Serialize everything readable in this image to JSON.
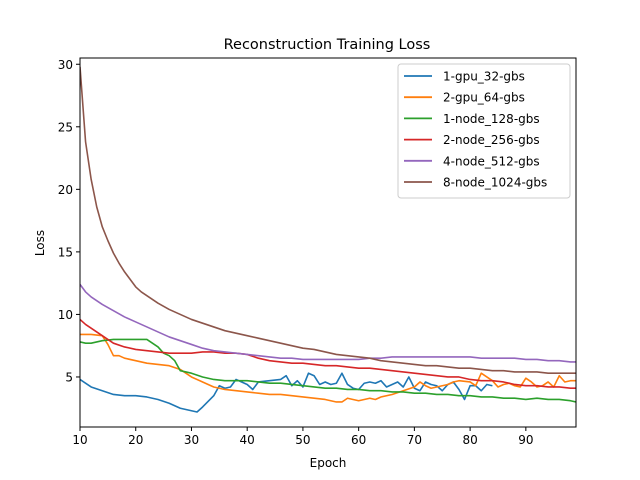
{
  "chart_data": {
    "type": "line",
    "title": "Reconstruction Training Loss",
    "xlabel": "Epoch",
    "ylabel": "Loss",
    "xlim": [
      10,
      99
    ],
    "ylim": [
      1,
      30.5
    ],
    "xticks": [
      10,
      20,
      30,
      40,
      50,
      60,
      70,
      80,
      90
    ],
    "yticks": [
      5,
      10,
      15,
      20,
      25,
      30
    ],
    "grid": false,
    "legend_position": "top-right",
    "series": [
      {
        "name": "1-gpu_32-gbs",
        "color": "#1f77b4",
        "x": [
          10,
          12,
          14,
          16,
          18,
          20,
          22,
          24,
          26,
          27,
          28,
          30,
          31,
          32,
          34,
          35,
          36,
          37,
          38,
          40,
          41,
          42,
          44,
          46,
          47,
          48,
          49,
          50,
          51,
          52,
          53,
          54,
          55,
          56,
          57,
          58,
          59,
          60,
          61,
          62,
          63,
          64,
          65,
          66,
          67,
          68,
          69,
          70,
          71,
          72,
          73,
          74,
          75,
          76,
          77,
          78,
          79,
          80,
          81,
          82,
          83,
          84
        ],
        "y": [
          4.8,
          4.2,
          3.9,
          3.6,
          3.5,
          3.5,
          3.4,
          3.2,
          2.9,
          2.7,
          2.5,
          2.3,
          2.2,
          2.6,
          3.5,
          4.3,
          4.1,
          4.2,
          4.8,
          4.4,
          4.0,
          4.6,
          4.7,
          4.8,
          5.1,
          4.3,
          4.7,
          4.2,
          5.3,
          5.1,
          4.4,
          4.6,
          4.4,
          4.5,
          5.3,
          4.4,
          4.1,
          4.0,
          4.5,
          4.6,
          4.5,
          4.7,
          4.2,
          4.4,
          4.6,
          4.2,
          5.0,
          4.1,
          3.9,
          4.6,
          4.4,
          4.3,
          3.9,
          4.4,
          4.6,
          4.0,
          3.2,
          4.3,
          4.3,
          3.9,
          4.4,
          4.3
        ]
      },
      {
        "name": "2-gpu_64-gbs",
        "color": "#ff7f0e",
        "x": [
          10,
          12,
          14,
          15,
          16,
          17,
          18,
          20,
          22,
          24,
          26,
          28,
          30,
          32,
          34,
          36,
          38,
          40,
          42,
          44,
          46,
          48,
          50,
          52,
          54,
          56,
          57,
          58,
          60,
          62,
          63,
          64,
          66,
          68,
          70,
          71,
          72,
          73,
          74,
          76,
          77,
          78,
          80,
          81,
          82,
          84,
          85,
          86,
          87,
          88,
          89,
          90,
          91,
          92,
          93,
          94,
          95,
          96,
          97,
          98,
          99
        ],
        "y": [
          8.4,
          8.4,
          8.3,
          7.6,
          6.7,
          6.7,
          6.5,
          6.3,
          6.1,
          6.0,
          5.9,
          5.6,
          5.0,
          4.6,
          4.2,
          4.0,
          3.9,
          3.8,
          3.7,
          3.6,
          3.6,
          3.5,
          3.4,
          3.3,
          3.2,
          3.0,
          3.0,
          3.3,
          3.1,
          3.3,
          3.2,
          3.4,
          3.6,
          3.9,
          4.2,
          4.6,
          4.3,
          4.1,
          4.2,
          4.4,
          4.6,
          4.7,
          4.6,
          4.3,
          5.3,
          4.7,
          4.2,
          4.4,
          4.5,
          4.3,
          4.2,
          4.9,
          4.6,
          4.2,
          4.3,
          4.6,
          4.2,
          5.1,
          4.6,
          4.7,
          4.7
        ]
      },
      {
        "name": "1-node_128-gbs",
        "color": "#2ca02c",
        "x": [
          10,
          11,
          12,
          14,
          16,
          18,
          20,
          22,
          23,
          24,
          25,
          26,
          27,
          28,
          30,
          32,
          34,
          36,
          38,
          40,
          42,
          44,
          46,
          48,
          50,
          52,
          54,
          56,
          58,
          60,
          62,
          64,
          66,
          68,
          70,
          72,
          74,
          76,
          78,
          80,
          82,
          84,
          86,
          88,
          90,
          92,
          94,
          96,
          98,
          99
        ],
        "y": [
          7.8,
          7.7,
          7.7,
          7.9,
          8.0,
          8.0,
          8.0,
          8.0,
          7.7,
          7.4,
          6.9,
          6.7,
          6.3,
          5.5,
          5.3,
          5.0,
          4.8,
          4.7,
          4.7,
          4.7,
          4.6,
          4.5,
          4.5,
          4.4,
          4.3,
          4.2,
          4.1,
          4.1,
          4.0,
          4.0,
          3.9,
          3.9,
          3.8,
          3.8,
          3.7,
          3.7,
          3.6,
          3.6,
          3.5,
          3.5,
          3.4,
          3.4,
          3.3,
          3.3,
          3.2,
          3.3,
          3.2,
          3.2,
          3.1,
          3.0
        ]
      },
      {
        "name": "2-node_256-gbs",
        "color": "#d62728",
        "x": [
          10,
          11,
          12,
          14,
          16,
          18,
          20,
          22,
          24,
          26,
          28,
          30,
          32,
          34,
          36,
          38,
          40,
          42,
          44,
          46,
          48,
          50,
          52,
          54,
          56,
          58,
          60,
          62,
          64,
          66,
          68,
          70,
          72,
          74,
          76,
          78,
          80,
          82,
          84,
          86,
          88,
          90,
          92,
          94,
          96,
          98,
          99
        ],
        "y": [
          9.6,
          9.2,
          8.9,
          8.3,
          7.7,
          7.4,
          7.2,
          7.1,
          7.0,
          6.9,
          6.9,
          6.9,
          7.0,
          7.0,
          6.9,
          6.9,
          6.8,
          6.5,
          6.3,
          6.2,
          6.1,
          6.1,
          6.0,
          5.9,
          5.9,
          5.8,
          5.7,
          5.7,
          5.6,
          5.5,
          5.4,
          5.3,
          5.2,
          5.1,
          5.0,
          5.0,
          4.8,
          4.7,
          4.7,
          4.6,
          4.4,
          4.3,
          4.3,
          4.2,
          4.2,
          4.1,
          4.1
        ]
      },
      {
        "name": "4-node_512-gbs",
        "color": "#9467bd",
        "x": [
          10,
          11,
          12,
          14,
          16,
          18,
          20,
          22,
          24,
          26,
          28,
          30,
          32,
          34,
          36,
          38,
          40,
          42,
          44,
          46,
          48,
          50,
          52,
          54,
          56,
          58,
          60,
          62,
          64,
          66,
          68,
          70,
          72,
          74,
          76,
          78,
          80,
          82,
          84,
          86,
          88,
          90,
          92,
          94,
          96,
          98,
          99
        ],
        "y": [
          12.4,
          11.8,
          11.4,
          10.8,
          10.3,
          9.8,
          9.4,
          9.0,
          8.6,
          8.2,
          7.9,
          7.6,
          7.3,
          7.1,
          7.0,
          6.9,
          6.8,
          6.7,
          6.6,
          6.5,
          6.5,
          6.4,
          6.4,
          6.4,
          6.4,
          6.4,
          6.4,
          6.5,
          6.5,
          6.6,
          6.6,
          6.6,
          6.6,
          6.6,
          6.6,
          6.6,
          6.6,
          6.5,
          6.5,
          6.5,
          6.5,
          6.4,
          6.4,
          6.3,
          6.3,
          6.2,
          6.2
        ]
      },
      {
        "name": "8-node_1024-gbs",
        "color": "#8c564b",
        "x": [
          10,
          11,
          12,
          13,
          14,
          15,
          16,
          17,
          18,
          19,
          20,
          21,
          22,
          24,
          26,
          28,
          30,
          32,
          34,
          36,
          38,
          40,
          42,
          44,
          46,
          48,
          50,
          52,
          54,
          56,
          58,
          60,
          62,
          64,
          66,
          68,
          70,
          72,
          74,
          76,
          78,
          80,
          82,
          84,
          86,
          88,
          90,
          92,
          94,
          96,
          98,
          99
        ],
        "y": [
          29.8,
          23.8,
          20.8,
          18.6,
          17.0,
          15.9,
          14.9,
          14.1,
          13.4,
          12.8,
          12.2,
          11.8,
          11.5,
          10.9,
          10.4,
          10.0,
          9.6,
          9.3,
          9.0,
          8.7,
          8.5,
          8.3,
          8.1,
          7.9,
          7.7,
          7.5,
          7.3,
          7.2,
          7.0,
          6.8,
          6.7,
          6.6,
          6.5,
          6.3,
          6.2,
          6.1,
          6.0,
          5.9,
          5.9,
          5.8,
          5.7,
          5.7,
          5.6,
          5.5,
          5.5,
          5.4,
          5.4,
          5.4,
          5.3,
          5.3,
          5.3,
          5.3
        ]
      }
    ]
  }
}
